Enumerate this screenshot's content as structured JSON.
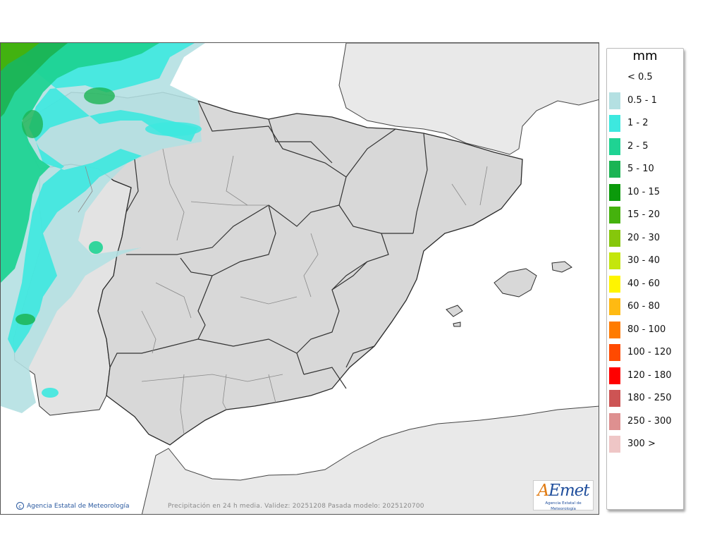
{
  "map": {
    "credit": "Agencia Estatal de Meteorología",
    "validity": "Precipitación en 24 h media. Validez: 20251208 Pasada modelo: 2025120700",
    "logo": {
      "text": "AEmet",
      "subtitle": "Agencia Estatal de Meteorología"
    },
    "colors": {
      "sea": "#ffffff",
      "land_other": "#e9e9e9",
      "spain": "#d8d8d8",
      "border": "#2a2a2a"
    }
  },
  "legend": {
    "unit": "mm",
    "items": [
      {
        "label": "< 0.5",
        "color": "#ffffff"
      },
      {
        "label": "0.5 - 1",
        "color": "#b4e0e2"
      },
      {
        "label": "1 - 2",
        "color": "#3de8df"
      },
      {
        "label": "2 - 5",
        "color": "#1fd393"
      },
      {
        "label": "5 - 10",
        "color": "#1bb454"
      },
      {
        "label": "10 - 15",
        "color": "#0b9a0b"
      },
      {
        "label": "15 - 20",
        "color": "#45b20d"
      },
      {
        "label": "20 - 30",
        "color": "#86c70b"
      },
      {
        "label": "30 - 40",
        "color": "#c4e60c"
      },
      {
        "label": "40 - 60",
        "color": "#fff500"
      },
      {
        "label": "60 - 80",
        "color": "#ffba12"
      },
      {
        "label": "80 - 100",
        "color": "#ff7b00"
      },
      {
        "label": "100 - 120",
        "color": "#ff4a00"
      },
      {
        "label": "120 - 180",
        "color": "#ff0000"
      },
      {
        "label": "180 - 250",
        "color": "#cd5454"
      },
      {
        "label": "250 - 300",
        "color": "#de9090"
      },
      {
        "label": "300 >",
        "color": "#efc6c6"
      }
    ]
  }
}
